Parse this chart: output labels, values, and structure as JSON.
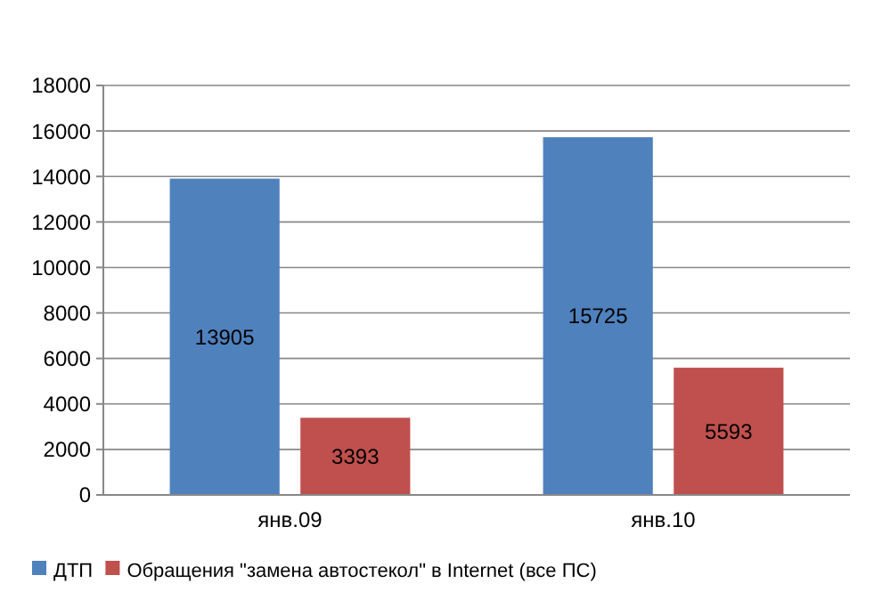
{
  "chart_data": {
    "type": "bar",
    "categories": [
      "янв.09",
      "янв.10"
    ],
    "series": [
      {
        "name": "ДТП",
        "color": "#4f81bd",
        "values": [
          13905,
          15725
        ]
      },
      {
        "name": "Обращения \"замена автостекол\" в Internet (все ПС)",
        "color": "#c0504d",
        "values": [
          3393,
          5593
        ]
      }
    ],
    "ylim": [
      0,
      18000
    ],
    "yticks": [
      0,
      2000,
      4000,
      6000,
      8000,
      10000,
      12000,
      14000,
      16000,
      18000
    ],
    "grid": "y",
    "legend": "bottom",
    "data_labels": true
  }
}
